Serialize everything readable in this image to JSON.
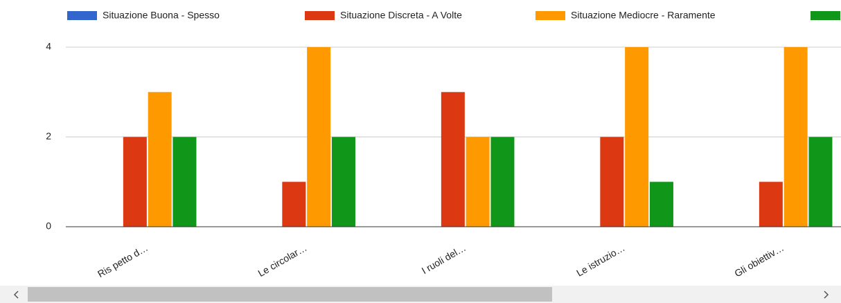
{
  "chart_data": {
    "type": "bar",
    "categories": [
      "Ris petto d…",
      "Le circolar…",
      "I ruoli del…",
      "Le istruzio…",
      "Gli obiettiv…"
    ],
    "series": [
      {
        "name": "Situazione Buona - Spesso",
        "color": "#3366cc",
        "values": [
          0,
          0,
          0,
          0,
          0
        ]
      },
      {
        "name": "Situazione Discreta - A Volte",
        "color": "#dc3912",
        "values": [
          2,
          1,
          3,
          2,
          1
        ]
      },
      {
        "name": "Situazione Mediocre - Raramente",
        "color": "#ff9900",
        "values": [
          3,
          4,
          2,
          4,
          4
        ]
      },
      {
        "name": null,
        "color": "#109618",
        "values": [
          2,
          2,
          2,
          1,
          2
        ]
      }
    ],
    "ylim": [
      0,
      4
    ],
    "yticks": [
      0,
      2,
      4
    ],
    "grid": true,
    "legend": "top"
  }
}
